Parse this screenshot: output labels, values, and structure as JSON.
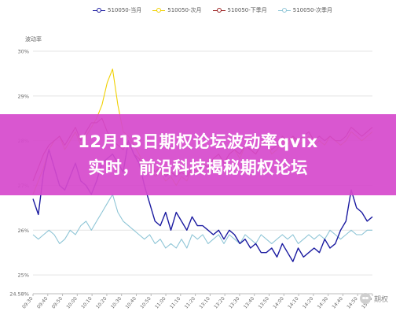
{
  "chart_data": {
    "type": "line",
    "ylabel": "波动率",
    "ylim": [
      0.2458,
      0.3
    ],
    "y_ticks": [
      "24.58%",
      "25%",
      "26%",
      "27%",
      "28%",
      "29%",
      "30%"
    ],
    "y_tick_values": [
      0.2458,
      0.25,
      0.26,
      0.27,
      0.28,
      0.29,
      0.3
    ],
    "x_ticks": [
      "09:30",
      "09:40",
      "09:50",
      "10:00",
      "10:10",
      "10:20",
      "10:30",
      "10:40",
      "10:50",
      "11:00",
      "11:10",
      "11:20",
      "13:10",
      "13:20",
      "13:30",
      "13:40",
      "13:50",
      "14:00",
      "14:10",
      "14:20",
      "14:30",
      "14:40",
      "14:50",
      "15:00"
    ],
    "legend_position": "top-center",
    "grid": true,
    "series": [
      {
        "name": "510050-当月",
        "color": "#1a1aa0",
        "values": [
          0.267,
          0.2635,
          0.273,
          0.278,
          0.274,
          0.27,
          0.269,
          0.272,
          0.275,
          0.271,
          0.27,
          0.268,
          0.271,
          0.275,
          0.276,
          0.277,
          0.275,
          0.273,
          0.28,
          0.277,
          0.275,
          0.27,
          0.266,
          0.262,
          0.261,
          0.264,
          0.26,
          0.264,
          0.262,
          0.26,
          0.263,
          0.261,
          0.261,
          0.26,
          0.259,
          0.26,
          0.258,
          0.26,
          0.259,
          0.257,
          0.258,
          0.256,
          0.257,
          0.255,
          0.255,
          0.256,
          0.254,
          0.257,
          0.255,
          0.253,
          0.256,
          0.254,
          0.255,
          0.256,
          0.255,
          0.258,
          0.256,
          0.257,
          0.26,
          0.262,
          0.269,
          0.265,
          0.264,
          0.262,
          0.263
        ]
      },
      {
        "name": "510050-次月",
        "color": "#f0d000",
        "values": [
          0.268,
          0.271,
          0.274,
          0.278,
          0.28,
          0.281,
          0.278,
          0.28,
          0.282,
          0.279,
          0.281,
          0.283,
          0.285,
          0.288,
          0.293,
          0.296,
          0.288,
          0.282,
          0.281,
          0.279,
          0.277,
          0.274,
          0.275,
          0.272,
          0.273,
          0.271,
          0.272,
          0.27,
          0.272,
          0.271,
          0.274,
          0.273,
          0.275,
          0.274,
          0.276,
          0.277,
          0.275,
          0.277,
          0.278,
          0.276,
          0.279,
          0.278,
          0.277,
          0.279,
          0.28,
          0.277,
          0.278,
          0.28,
          0.279,
          0.281,
          0.279,
          0.28,
          0.281,
          0.279,
          0.28,
          0.279,
          0.281,
          0.28,
          0.279,
          0.28,
          0.282,
          0.281,
          0.28,
          0.281,
          0.282
        ]
      },
      {
        "name": "510050-下季月",
        "color": "#9a2020",
        "values": [
          0.271,
          0.274,
          0.277,
          0.279,
          0.28,
          0.281,
          0.279,
          0.281,
          0.283,
          0.28,
          0.282,
          0.284,
          0.284,
          0.285,
          0.282,
          0.28,
          0.279,
          0.278,
          0.28,
          0.277,
          0.276,
          0.274,
          0.275,
          0.273,
          0.274,
          0.272,
          0.273,
          0.272,
          0.273,
          0.272,
          0.274,
          0.273,
          0.275,
          0.274,
          0.276,
          0.277,
          0.275,
          0.277,
          0.278,
          0.277,
          0.279,
          0.278,
          0.277,
          0.279,
          0.28,
          0.278,
          0.279,
          0.281,
          0.28,
          0.281,
          0.28,
          0.281,
          0.282,
          0.28,
          0.281,
          0.28,
          0.281,
          0.28,
          0.28,
          0.281,
          0.283,
          0.282,
          0.281,
          0.282,
          0.283
        ]
      },
      {
        "name": "510050-次季月",
        "color": "#8ec5d6",
        "values": [
          0.259,
          0.258,
          0.259,
          0.26,
          0.259,
          0.257,
          0.258,
          0.26,
          0.259,
          0.261,
          0.262,
          0.26,
          0.262,
          0.264,
          0.266,
          0.268,
          0.264,
          0.262,
          0.261,
          0.26,
          0.259,
          0.258,
          0.259,
          0.257,
          0.258,
          0.256,
          0.257,
          0.256,
          0.258,
          0.256,
          0.259,
          0.258,
          0.259,
          0.257,
          0.258,
          0.259,
          0.257,
          0.259,
          0.258,
          0.257,
          0.259,
          0.258,
          0.257,
          0.259,
          0.258,
          0.257,
          0.258,
          0.259,
          0.258,
          0.259,
          0.257,
          0.258,
          0.259,
          0.258,
          0.259,
          0.258,
          0.26,
          0.259,
          0.258,
          0.259,
          0.26,
          0.259,
          0.259,
          0.26,
          0.26
        ]
      }
    ]
  },
  "banner": {
    "line1": "12月13日期权论坛波动率qvix",
    "line2": "实时，前沿科技揭秘期权论坛"
  },
  "watermark": {
    "text": "期权"
  }
}
